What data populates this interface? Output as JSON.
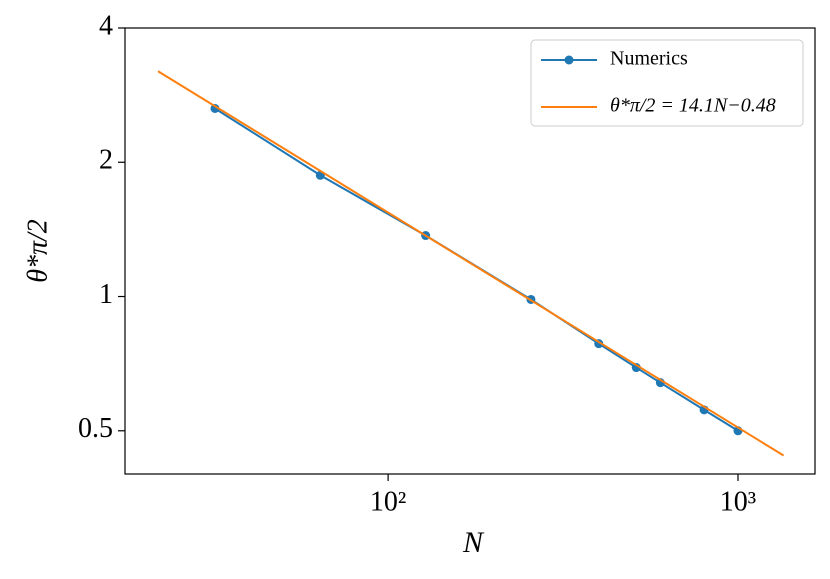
{
  "chart_data": {
    "type": "line",
    "x_label": "N",
    "y_label": "θ*π/2",
    "xscale": "log",
    "yscale": "log",
    "xlim": [
      17.7,
      1660
    ],
    "ylim": [
      0.4,
      4
    ],
    "xticks": [
      {
        "value": 100,
        "label": "10²"
      },
      {
        "value": 1000,
        "label": "10³"
      }
    ],
    "yticks": [
      0.5,
      1,
      2,
      4
    ],
    "legend": "upper right",
    "series": [
      {
        "name": "Numerics",
        "color": "#1f77b4",
        "marker": true,
        "x": [
          32,
          64,
          128,
          256,
          400,
          512,
          600,
          800,
          1000
        ],
        "values": [
          2.64,
          1.87,
          1.37,
          0.985,
          0.784,
          0.693,
          0.641,
          0.557,
          0.5
        ]
      },
      {
        "name": "θ*π/2 = 14.1N−0.48",
        "color": "#ff7f0e",
        "marker": false,
        "x": [
          22,
          1350
        ],
        "values": [
          3.2,
          0.44
        ]
      }
    ]
  }
}
